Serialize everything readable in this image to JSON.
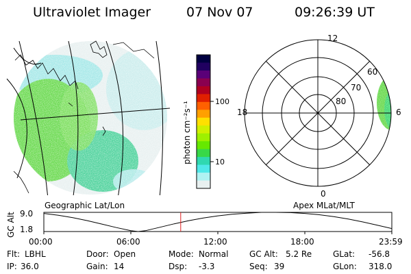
{
  "header": {
    "title": "Ultraviolet Imager",
    "date": "07 Nov 07",
    "time": "09:26:39 UT"
  },
  "panels": {
    "left_label": "Geographic Lat/Lon",
    "right_label": "Apex MLat/MLT"
  },
  "colorbar": {
    "unit_label": "photon cm⁻²s⁻¹",
    "scale": "log",
    "tick_labels": [
      "100",
      "10"
    ],
    "colors": [
      "#000040",
      "#200060",
      "#5a0078",
      "#8a0050",
      "#b00020",
      "#e02000",
      "#ff6000",
      "#ffa000",
      "#ffe000",
      "#d0f000",
      "#9ef000",
      "#66e800",
      "#38d848",
      "#30d8b0",
      "#50e8e8",
      "#b0f2f2",
      "#e8f0f0"
    ]
  },
  "polar_plot": {
    "mlt_labels": [
      "12",
      "18",
      "6",
      "0"
    ],
    "lat_labels": [
      "60",
      "70",
      "80"
    ]
  },
  "chart_data": {
    "type": "line",
    "title": "",
    "ylabel": "GC Alt",
    "ytick_labels": [
      "9.0",
      "1.8"
    ],
    "ylim": [
      1.8,
      9.0
    ],
    "xtick_labels": [
      "00:00",
      "06:00",
      "12:00",
      "18:00",
      "23:59"
    ],
    "x": [
      0,
      1,
      2,
      3,
      4,
      5,
      6,
      6.5,
      7,
      8,
      9,
      10,
      11,
      12,
      13,
      14,
      15,
      16,
      17,
      18,
      19,
      20,
      21,
      22,
      23,
      24
    ],
    "series": [
      {
        "values": [
          8.6,
          7.9,
          7.0,
          5.9,
          4.6,
          3.3,
          2.1,
          1.8,
          2.1,
          3.4,
          4.7,
          5.9,
          6.9,
          7.7,
          8.3,
          8.7,
          9.0,
          9.0,
          8.9,
          8.6,
          8.1,
          7.4,
          6.5,
          5.4,
          4.2,
          2.9
        ]
      }
    ],
    "current_time_marker": 9.44
  },
  "info": {
    "row1": [
      {
        "label": "Flt:",
        "value": "LBHL"
      },
      {
        "label": "Door:",
        "value": "Open"
      },
      {
        "label": "Mode:",
        "value": "Normal"
      },
      {
        "label": "GC Alt:",
        "value": "5.2 Re"
      },
      {
        "label": "GLat:",
        "value": "-56.8"
      }
    ],
    "row2": [
      {
        "label": "IP:",
        "value": "36.0"
      },
      {
        "label": "Gain:",
        "value": "14"
      },
      {
        "label": "Dsp:",
        "value": "-3.3"
      },
      {
        "label": "Seq:",
        "value": "39"
      },
      {
        "label": "GLon:",
        "value": "318.0"
      }
    ]
  }
}
